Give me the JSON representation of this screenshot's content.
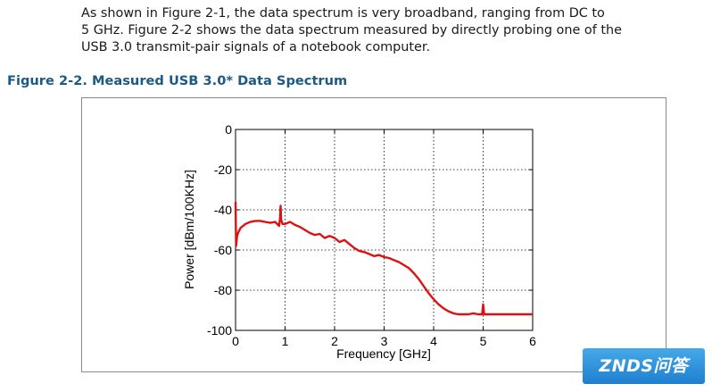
{
  "document": {
    "paragraph_lines": [
      "As shown in Figure 2-1, the data spectrum is very broadband, ranging from DC to",
      "5 GHz. Figure 2-2 shows the data spectrum measured by directly probing one of the",
      "USB 3.0 transmit-pair signals of a notebook computer."
    ],
    "figure_title": "Figure 2-2. Measured USB 3.0* Data Spectrum"
  },
  "chart_data": {
    "type": "line",
    "title": "",
    "xlabel": "Frequency [GHz]",
    "ylabel": "Power [dBm/100KHz]",
    "xlim": [
      0,
      6
    ],
    "ylim": [
      -100,
      0
    ],
    "xticks": [
      "0",
      "1",
      "2",
      "3",
      "4",
      "5",
      "6"
    ],
    "yticks": [
      "0",
      "-20",
      "-40",
      "-60",
      "-80",
      "-100"
    ],
    "grid": true,
    "line_color": "#dd1111",
    "series": [
      {
        "name": "",
        "x": [
          0,
          0.01,
          0.03,
          0.06,
          0.1,
          0.2,
          0.3,
          0.4,
          0.5,
          0.6,
          0.7,
          0.8,
          0.88,
          0.9,
          0.91,
          0.92,
          0.95,
          1.0,
          1.1,
          1.2,
          1.3,
          1.4,
          1.5,
          1.6,
          1.7,
          1.8,
          1.9,
          2.0,
          2.1,
          2.2,
          2.3,
          2.4,
          2.5,
          2.6,
          2.7,
          2.8,
          2.9,
          3.0,
          3.1,
          3.2,
          3.3,
          3.4,
          3.5,
          3.6,
          3.7,
          3.8,
          3.9,
          4.0,
          4.1,
          4.2,
          4.3,
          4.4,
          4.5,
          4.6,
          4.7,
          4.8,
          4.9,
          4.98,
          5.0,
          5.02,
          5.1,
          5.2,
          5.4,
          5.6,
          5.8,
          6.0
        ],
        "y": [
          -36,
          -58,
          -53,
          -51,
          -49,
          -47,
          -46,
          -45.5,
          -45.5,
          -46,
          -46.5,
          -46,
          -48,
          -44,
          -38,
          -45,
          -47,
          -47,
          -46,
          -47.5,
          -48.5,
          -50,
          -51.5,
          -52.5,
          -52,
          -54,
          -53,
          -54,
          -56,
          -55,
          -57,
          -59,
          -60.5,
          -61,
          -62,
          -63,
          -62.5,
          -63.5,
          -64,
          -65,
          -66,
          -67.5,
          -69,
          -71.5,
          -74.5,
          -78,
          -81.5,
          -84.5,
          -87,
          -89,
          -90.5,
          -91.5,
          -92,
          -92,
          -92,
          -91.5,
          -92,
          -92,
          -87,
          -92,
          -92,
          -92,
          -92,
          -92,
          -92,
          -92
        ]
      }
    ]
  },
  "watermark": "ZNDS问答"
}
